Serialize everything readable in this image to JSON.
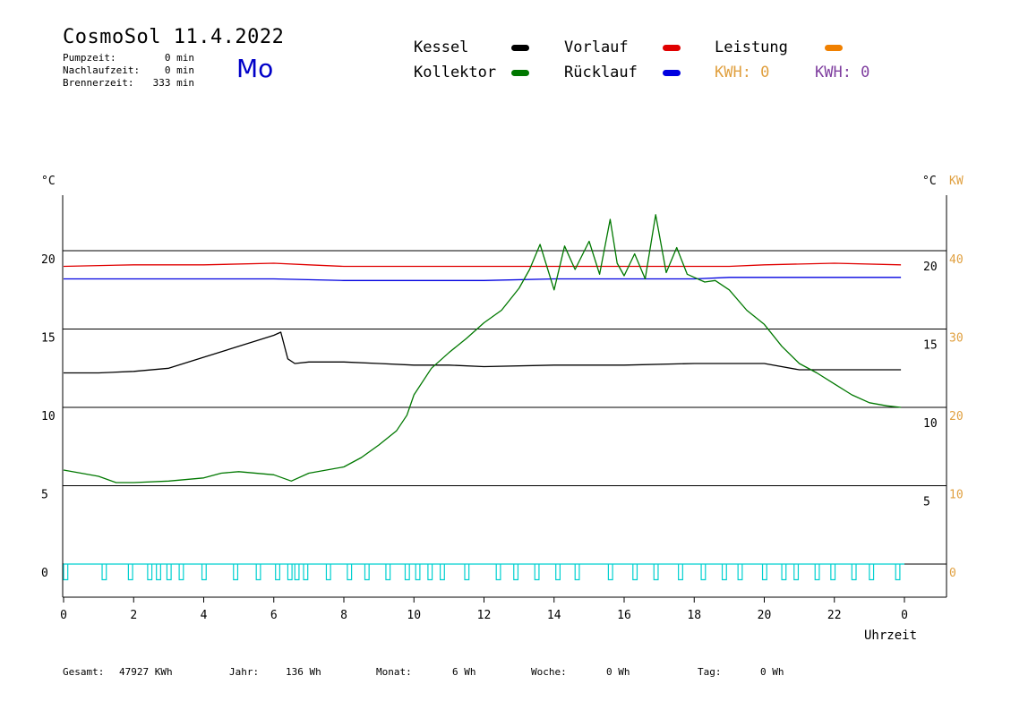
{
  "header": {
    "title": "CosmoSol 11.4.2022",
    "weekday": "Mo",
    "info_rows": [
      {
        "label": "Pumpzeit:",
        "value": "0 min"
      },
      {
        "label": "Nachlaufzeit:",
        "value": "0 min"
      },
      {
        "label": "Brennerzeit:",
        "value": "333 min"
      }
    ]
  },
  "legend": {
    "items": [
      {
        "label": "Kessel",
        "color": "#000000"
      },
      {
        "label": "Vorlauf",
        "color": "#e00000"
      },
      {
        "label": "Leistung",
        "color": "#f08000"
      },
      {
        "label": "Kollektor",
        "color": "#007800"
      },
      {
        "label": "Rücklauf",
        "color": "#0000e0"
      }
    ],
    "kwh_orange": "KWH: 0",
    "kwh_purple": "KWH: 0",
    "kwh_orange_color": "#e0a040",
    "kwh_purple_color": "#8040a0"
  },
  "footer": {
    "gesamt_label": "Gesamt:",
    "gesamt_value": "47927 KWh",
    "jahr_label": "Jahr:",
    "jahr_value": "136 Wh",
    "monat_label": "Monat:",
    "monat_value": "6 Wh",
    "woche_label": "Woche:",
    "woche_value": "0 Wh",
    "tag_label": "Tag:",
    "tag_value": "0 Wh"
  },
  "chart_data": {
    "type": "line",
    "xlabel": "Uhrzeit",
    "ylabel_left": "°C",
    "ylabel_right": "°C",
    "ylabel_right2": "KW",
    "xlim": [
      0,
      24
    ],
    "ylim": [
      -2,
      24
    ],
    "x_ticks": [
      "0",
      "2",
      "4",
      "6",
      "8",
      "10",
      "12",
      "14",
      "16",
      "18",
      "20",
      "22",
      "0"
    ],
    "y_ticks_left": [
      "0",
      "5",
      "10",
      "15",
      "20"
    ],
    "y_ticks_right": [
      "5",
      "10",
      "15",
      "20"
    ],
    "y_ticks_kw": [
      "0",
      "10",
      "20",
      "30",
      "40"
    ],
    "grid_levels": [
      0,
      5,
      10,
      15,
      20
    ],
    "series": [
      {
        "name": "Vorlauf",
        "color": "#e00000",
        "x": [
          0,
          2,
          4,
          6,
          7,
          8,
          10,
          12,
          14,
          16,
          17,
          18,
          19,
          20,
          22,
          23.9
        ],
        "y": [
          19.0,
          19.1,
          19.1,
          19.2,
          19.1,
          19.0,
          19.0,
          19.0,
          19.0,
          19.0,
          19.0,
          19.0,
          19.0,
          19.1,
          19.2,
          19.1
        ]
      },
      {
        "name": "Rücklauf",
        "color": "#0000e0",
        "x": [
          0,
          3,
          6,
          8,
          10,
          12,
          14,
          16,
          18,
          19,
          20,
          22,
          23.9
        ],
        "y": [
          18.2,
          18.2,
          18.2,
          18.1,
          18.1,
          18.1,
          18.2,
          18.2,
          18.2,
          18.3,
          18.3,
          18.3,
          18.3
        ],
        "label": "Rücklauf"
      },
      {
        "name": "Kessel",
        "color": "#000000",
        "x": [
          0,
          1,
          2,
          3,
          4,
          5,
          6,
          6.2,
          6.4,
          6.6,
          7,
          8,
          9,
          10,
          11,
          12,
          14,
          16,
          18,
          20,
          21,
          22,
          23,
          23.9
        ],
        "y": [
          12.2,
          12.2,
          12.3,
          12.5,
          13.2,
          13.9,
          14.6,
          14.8,
          13.1,
          12.8,
          12.9,
          12.9,
          12.8,
          12.7,
          12.7,
          12.6,
          12.7,
          12.7,
          12.8,
          12.8,
          12.4,
          12.4,
          12.4,
          12.4
        ]
      },
      {
        "name": "Kollektor",
        "color": "#007800",
        "x": [
          0,
          0.5,
          1,
          1.5,
          2,
          3,
          4,
          4.5,
          5,
          6,
          6.5,
          7,
          8,
          8.5,
          9,
          9.5,
          9.8,
          10,
          10.5,
          11,
          11.5,
          12,
          12.5,
          13,
          13.3,
          13.6,
          14,
          14.3,
          14.6,
          15,
          15.3,
          15.6,
          15.8,
          16,
          16.3,
          16.6,
          16.9,
          17.2,
          17.5,
          17.8,
          18,
          18.3,
          18.6,
          19,
          19.5,
          20,
          20.5,
          21,
          21.5,
          22,
          22.5,
          23,
          23.5,
          23.9
        ],
        "y": [
          6.0,
          5.8,
          5.6,
          5.2,
          5.2,
          5.3,
          5.5,
          5.8,
          5.9,
          5.7,
          5.3,
          5.8,
          6.2,
          6.8,
          7.6,
          8.5,
          9.5,
          10.8,
          12.5,
          13.5,
          14.4,
          15.4,
          16.2,
          17.6,
          18.8,
          20.4,
          17.5,
          20.3,
          18.8,
          20.6,
          18.5,
          22.0,
          19.2,
          18.4,
          19.8,
          18.2,
          22.3,
          18.6,
          20.2,
          18.5,
          18.3,
          18.0,
          18.1,
          17.5,
          16.2,
          15.3,
          13.9,
          12.8,
          12.2,
          11.5,
          10.8,
          10.3,
          10.1,
          10.0
        ]
      },
      {
        "name": "Pumpe",
        "color": "#00d0d0",
        "pulses": [
          0,
          1.1,
          1.85,
          2.4,
          2.65,
          2.95,
          3.3,
          3.95,
          4.85,
          5.5,
          6.05,
          6.4,
          6.6,
          6.85,
          7.5,
          8.1,
          8.6,
          9.2,
          9.75,
          10.05,
          10.4,
          10.75,
          11.45,
          12.35,
          12.85,
          13.45,
          14.05,
          14.6,
          15.55,
          16.25,
          16.85,
          17.55,
          18.2,
          18.8,
          19.25,
          19.95,
          20.5,
          20.85,
          21.45,
          21.9,
          22.5,
          23.0,
          23.75
        ],
        "pulse_width": 0.12
      }
    ]
  }
}
